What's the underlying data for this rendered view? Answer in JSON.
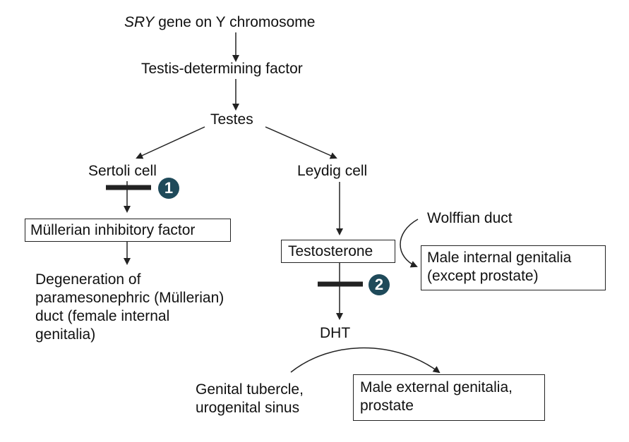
{
  "nodes": {
    "sry_italic": "SRY",
    "sry_rest": " gene on Y chromosome",
    "tdf": "Testis-determining factor",
    "testes": "Testes",
    "sertoli": "Sertoli cell",
    "leydig": "Leydig cell",
    "mif": "Müllerian inhibitory factor",
    "degeneration_1": "Degeneration of",
    "degeneration_2": "paramesonephric (Müllerian)",
    "degeneration_3": "duct (female internal",
    "degeneration_4": "genitalia)",
    "testosterone": "Testosterone",
    "wolffian": "Wolffian duct",
    "male_internal_1": "Male internal genitalia",
    "male_internal_2": "(except prostate)",
    "dht": "DHT",
    "genital_tubercle_1": "Genital tubercle,",
    "genital_tubercle_2": "urogenital sinus",
    "male_external_1": "Male external genitalia,",
    "male_external_2": "prostate"
  },
  "badges": {
    "block_1": "1",
    "block_2": "2"
  },
  "colors": {
    "badge": "#1f4a5a",
    "line": "#222222"
  }
}
